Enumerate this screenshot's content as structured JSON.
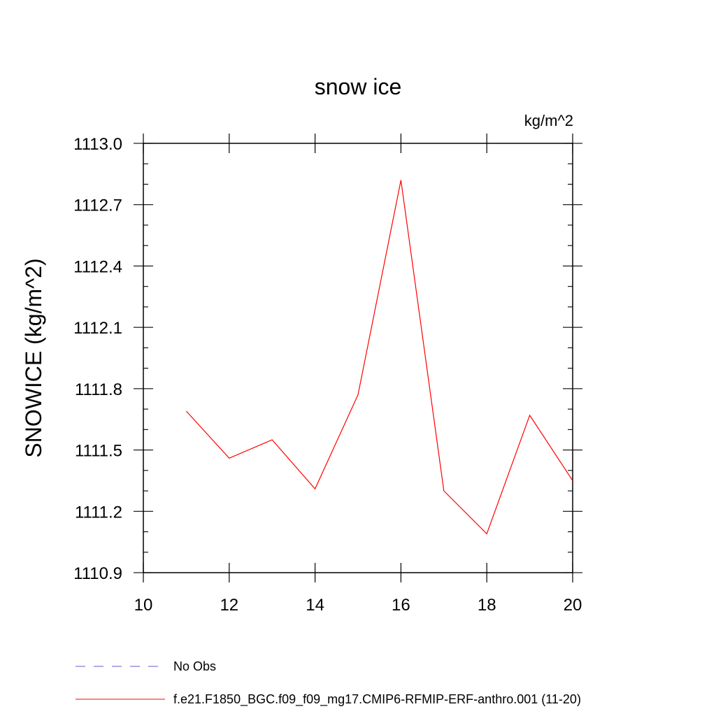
{
  "chart_data": {
    "type": "line",
    "title": "snow ice",
    "units_label": "kg/m^2",
    "xlabel": "",
    "ylabel": "SNOWICE  (kg/m^2)",
    "xlim": [
      10,
      20
    ],
    "ylim": [
      1110.9,
      1113.0
    ],
    "xticks": [
      "10",
      "12",
      "14",
      "16",
      "18",
      "20"
    ],
    "yticks": [
      "1110.9",
      "1111.2",
      "1111.5",
      "1111.8",
      "1112.1",
      "1112.4",
      "1112.7",
      "1113.0"
    ],
    "grid": false,
    "legend_position": "bottom-left",
    "series": [
      {
        "name": "f.e21.F1850_BGC.f09_f09_mg17.CMIP6-RFMIP-ERF-anthro.001 (11-20)",
        "color": "#ff0000",
        "style": "solid",
        "x": [
          11,
          12,
          13,
          14,
          15,
          16,
          17,
          18,
          19,
          20
        ],
        "y": [
          1111.69,
          1111.46,
          1111.55,
          1111.31,
          1111.77,
          1112.82,
          1111.3,
          1111.09,
          1111.67,
          1111.35
        ]
      }
    ],
    "legend": [
      {
        "label": "No Obs",
        "color": "#6a5acd",
        "style": "dashed"
      },
      {
        "label": "f.e21.F1850_BGC.f09_f09_mg17.CMIP6-RFMIP-ERF-anthro.001 (11-20)",
        "color": "#ff0000",
        "style": "solid"
      }
    ]
  }
}
